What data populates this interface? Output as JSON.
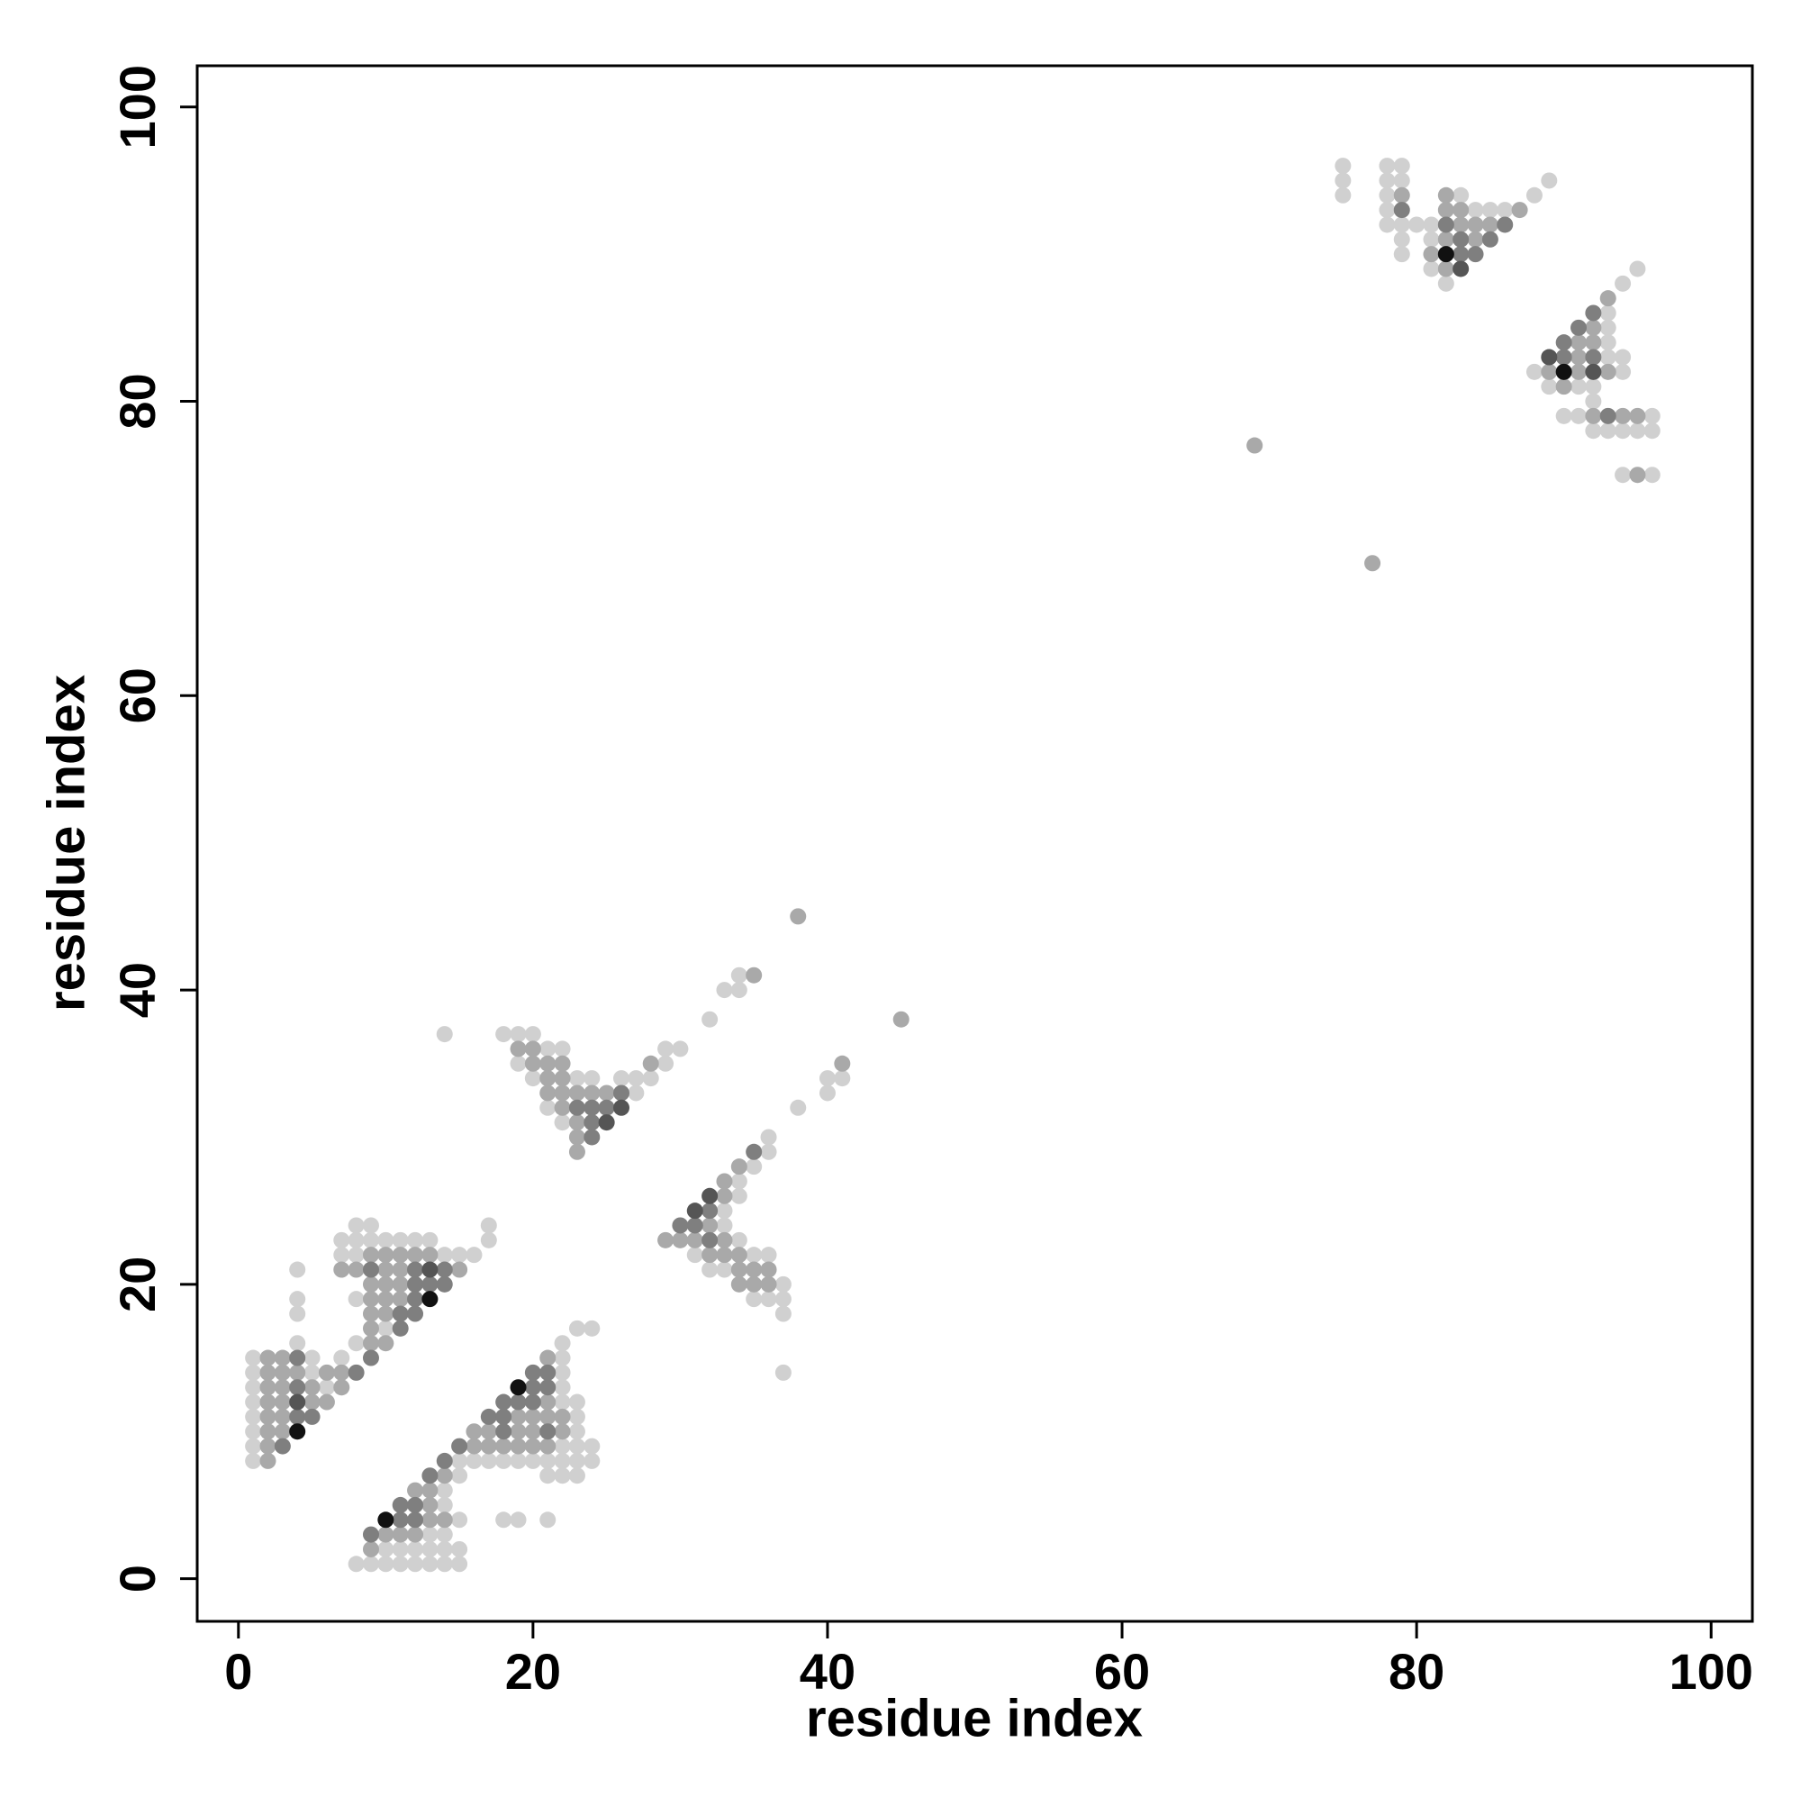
{
  "chart_data": {
    "type": "scatter",
    "xlabel": "residue index",
    "ylabel": "residue index",
    "xlim": [
      -2.8,
      102.8
    ],
    "ylim": [
      -2.9,
      102.8
    ],
    "xticks": [
      0,
      20,
      40,
      60,
      80,
      100
    ],
    "yticks": [
      0,
      20,
      40,
      60,
      80,
      100
    ],
    "series": [
      {
        "color": "#d0d0d0",
        "x": [
          1,
          1,
          1,
          1,
          1,
          1,
          1,
          1,
          4,
          4,
          4,
          4,
          5,
          5,
          6,
          7,
          7,
          8,
          9,
          10,
          11,
          12,
          13,
          8,
          9,
          17,
          17,
          7,
          8,
          14,
          15,
          16,
          8,
          10,
          8,
          8,
          9,
          10,
          11,
          12,
          13,
          14,
          15,
          10,
          11,
          12,
          13,
          14,
          15,
          13,
          14,
          15,
          18,
          19,
          21,
          14,
          14,
          15,
          15,
          16,
          17,
          18,
          19,
          20,
          21,
          22,
          23,
          24,
          22,
          23,
          24,
          21,
          22,
          23,
          23,
          23,
          22,
          23,
          22,
          22,
          22,
          22,
          23,
          24,
          14,
          18,
          19,
          20,
          21,
          22,
          19,
          20,
          23,
          24,
          26,
          27,
          28,
          27,
          21,
          22,
          29,
          29,
          30,
          32,
          33,
          34,
          34,
          38,
          40,
          40,
          41,
          33,
          33,
          34,
          34,
          35,
          36,
          36,
          34,
          31,
          35,
          36,
          32,
          33,
          37,
          35,
          36,
          37,
          37,
          37,
          75,
          78,
          79,
          75,
          78,
          79,
          89,
          75,
          78,
          88,
          83,
          78,
          84,
          85,
          86,
          78,
          79,
          80,
          81,
          79,
          81,
          79,
          81,
          82,
          95,
          94,
          93,
          93,
          93,
          93,
          94,
          88,
          94,
          89,
          91,
          92,
          92,
          90,
          91,
          96,
          92,
          93,
          94,
          95,
          96,
          94,
          96
        ],
        "y": [
          8,
          9,
          10,
          11,
          12,
          13,
          14,
          15,
          16,
          18,
          19,
          21,
          14,
          15,
          13,
          15,
          23,
          23,
          23,
          23,
          23,
          23,
          23,
          24,
          24,
          24,
          23,
          22,
          22,
          22,
          22,
          22,
          19,
          17,
          16,
          1,
          1,
          1,
          1,
          1,
          1,
          1,
          1,
          2,
          2,
          2,
          2,
          2,
          2,
          3,
          3,
          4,
          4,
          4,
          4,
          5,
          6,
          7,
          8,
          8,
          8,
          8,
          8,
          8,
          8,
          8,
          8,
          8,
          9,
          9,
          9,
          7,
          7,
          7,
          10,
          11,
          12,
          12,
          13,
          14,
          15,
          16,
          17,
          17,
          37,
          37,
          37,
          37,
          36,
          36,
          35,
          34,
          34,
          34,
          34,
          34,
          34,
          33,
          32,
          31,
          35,
          36,
          36,
          38,
          40,
          40,
          41,
          32,
          33,
          34,
          34,
          24,
          25,
          26,
          27,
          28,
          29,
          30,
          23,
          22,
          22,
          22,
          21,
          21,
          20,
          19,
          19,
          19,
          18,
          14,
          96,
          96,
          96,
          95,
          95,
          95,
          95,
          94,
          94,
          94,
          94,
          93,
          93,
          93,
          93,
          92,
          92,
          92,
          92,
          91,
          91,
          90,
          89,
          88,
          89,
          88,
          86,
          85,
          84,
          83,
          83,
          82,
          82,
          81,
          81,
          81,
          80,
          79,
          79,
          79,
          78,
          78,
          78,
          78,
          78,
          75,
          75
        ]
      },
      {
        "color": "#a9a9a9",
        "x": [
          2,
          2,
          2,
          2,
          2,
          2,
          2,
          2,
          3,
          3,
          3,
          3,
          3,
          3,
          4,
          5,
          5,
          6,
          6,
          7,
          7,
          9,
          10,
          11,
          12,
          13,
          7,
          8,
          10,
          11,
          15,
          9,
          10,
          11,
          9,
          10,
          11,
          9,
          10,
          9,
          9,
          10,
          9,
          10,
          11,
          12,
          13,
          14,
          13,
          12,
          13,
          14,
          16,
          17,
          18,
          19,
          20,
          21,
          16,
          17,
          19,
          20,
          22,
          19,
          20,
          21,
          22,
          21,
          21,
          19,
          20,
          20,
          21,
          22,
          21,
          22,
          21,
          22,
          23,
          24,
          25,
          22,
          23,
          23,
          23,
          28,
          35,
          38,
          45,
          41,
          29,
          30,
          31,
          33,
          32,
          33,
          33,
          34,
          32,
          33,
          34,
          34,
          35,
          36,
          34,
          35,
          36,
          79,
          82,
          82,
          83,
          87,
          83,
          84,
          85,
          82,
          84,
          81,
          82,
          93,
          92,
          91,
          92,
          91,
          89,
          91,
          93,
          90,
          92,
          94,
          95,
          95,
          69,
          77
        ],
        "y": [
          8,
          9,
          10,
          11,
          12,
          13,
          14,
          15,
          10,
          11,
          12,
          13,
          14,
          15,
          14,
          12,
          13,
          12,
          14,
          13,
          14,
          22,
          22,
          22,
          22,
          22,
          21,
          21,
          21,
          21,
          21,
          20,
          20,
          20,
          19,
          19,
          19,
          18,
          18,
          17,
          16,
          16,
          2,
          3,
          3,
          3,
          4,
          4,
          5,
          6,
          6,
          7,
          9,
          9,
          9,
          9,
          9,
          9,
          10,
          10,
          10,
          10,
          10,
          11,
          11,
          11,
          11,
          12,
          15,
          36,
          36,
          35,
          35,
          35,
          34,
          34,
          33,
          33,
          33,
          33,
          33,
          32,
          31,
          30,
          29,
          35,
          41,
          45,
          38,
          35,
          23,
          23,
          23,
          23,
          24,
          26,
          27,
          28,
          22,
          22,
          22,
          21,
          21,
          21,
          20,
          20,
          20,
          94,
          94,
          93,
          93,
          93,
          92,
          92,
          92,
          91,
          91,
          90,
          89,
          87,
          85,
          84,
          84,
          83,
          82,
          82,
          82,
          81,
          79,
          79,
          79,
          75,
          77,
          69
        ]
      },
      {
        "color": "#7f7f7f",
        "x": [
          3,
          4,
          4,
          4,
          5,
          8,
          9,
          9,
          12,
          14,
          12,
          13,
          14,
          12,
          11,
          12,
          11,
          9,
          11,
          12,
          11,
          12,
          13,
          14,
          15,
          18,
          21,
          17,
          18,
          18,
          19,
          20,
          20,
          21,
          20,
          21,
          26,
          23,
          24,
          25,
          24,
          24,
          30,
          31,
          32,
          32,
          35,
          79,
          82,
          86,
          83,
          85,
          83,
          84,
          92,
          91,
          90,
          90,
          92,
          93
        ],
        "y": [
          9,
          11,
          13,
          15,
          11,
          14,
          15,
          21,
          21,
          21,
          20,
          20,
          20,
          19,
          18,
          18,
          17,
          3,
          4,
          4,
          5,
          5,
          7,
          8,
          9,
          10,
          10,
          11,
          11,
          12,
          12,
          12,
          13,
          13,
          14,
          14,
          33,
          32,
          32,
          32,
          31,
          30,
          24,
          24,
          25,
          23,
          29,
          93,
          92,
          92,
          91,
          91,
          90,
          90,
          86,
          85,
          84,
          83,
          83,
          79
        ]
      },
      {
        "color": "#555555",
        "x": [
          4,
          13,
          26,
          25,
          31,
          32,
          83,
          89,
          92
        ],
        "y": [
          12,
          21,
          32,
          31,
          25,
          26,
          89,
          83,
          82
        ]
      },
      {
        "color": "#111111",
        "x": [
          4,
          13,
          10,
          19,
          82,
          90
        ],
        "y": [
          10,
          19,
          4,
          13,
          90,
          82
        ]
      }
    ]
  }
}
